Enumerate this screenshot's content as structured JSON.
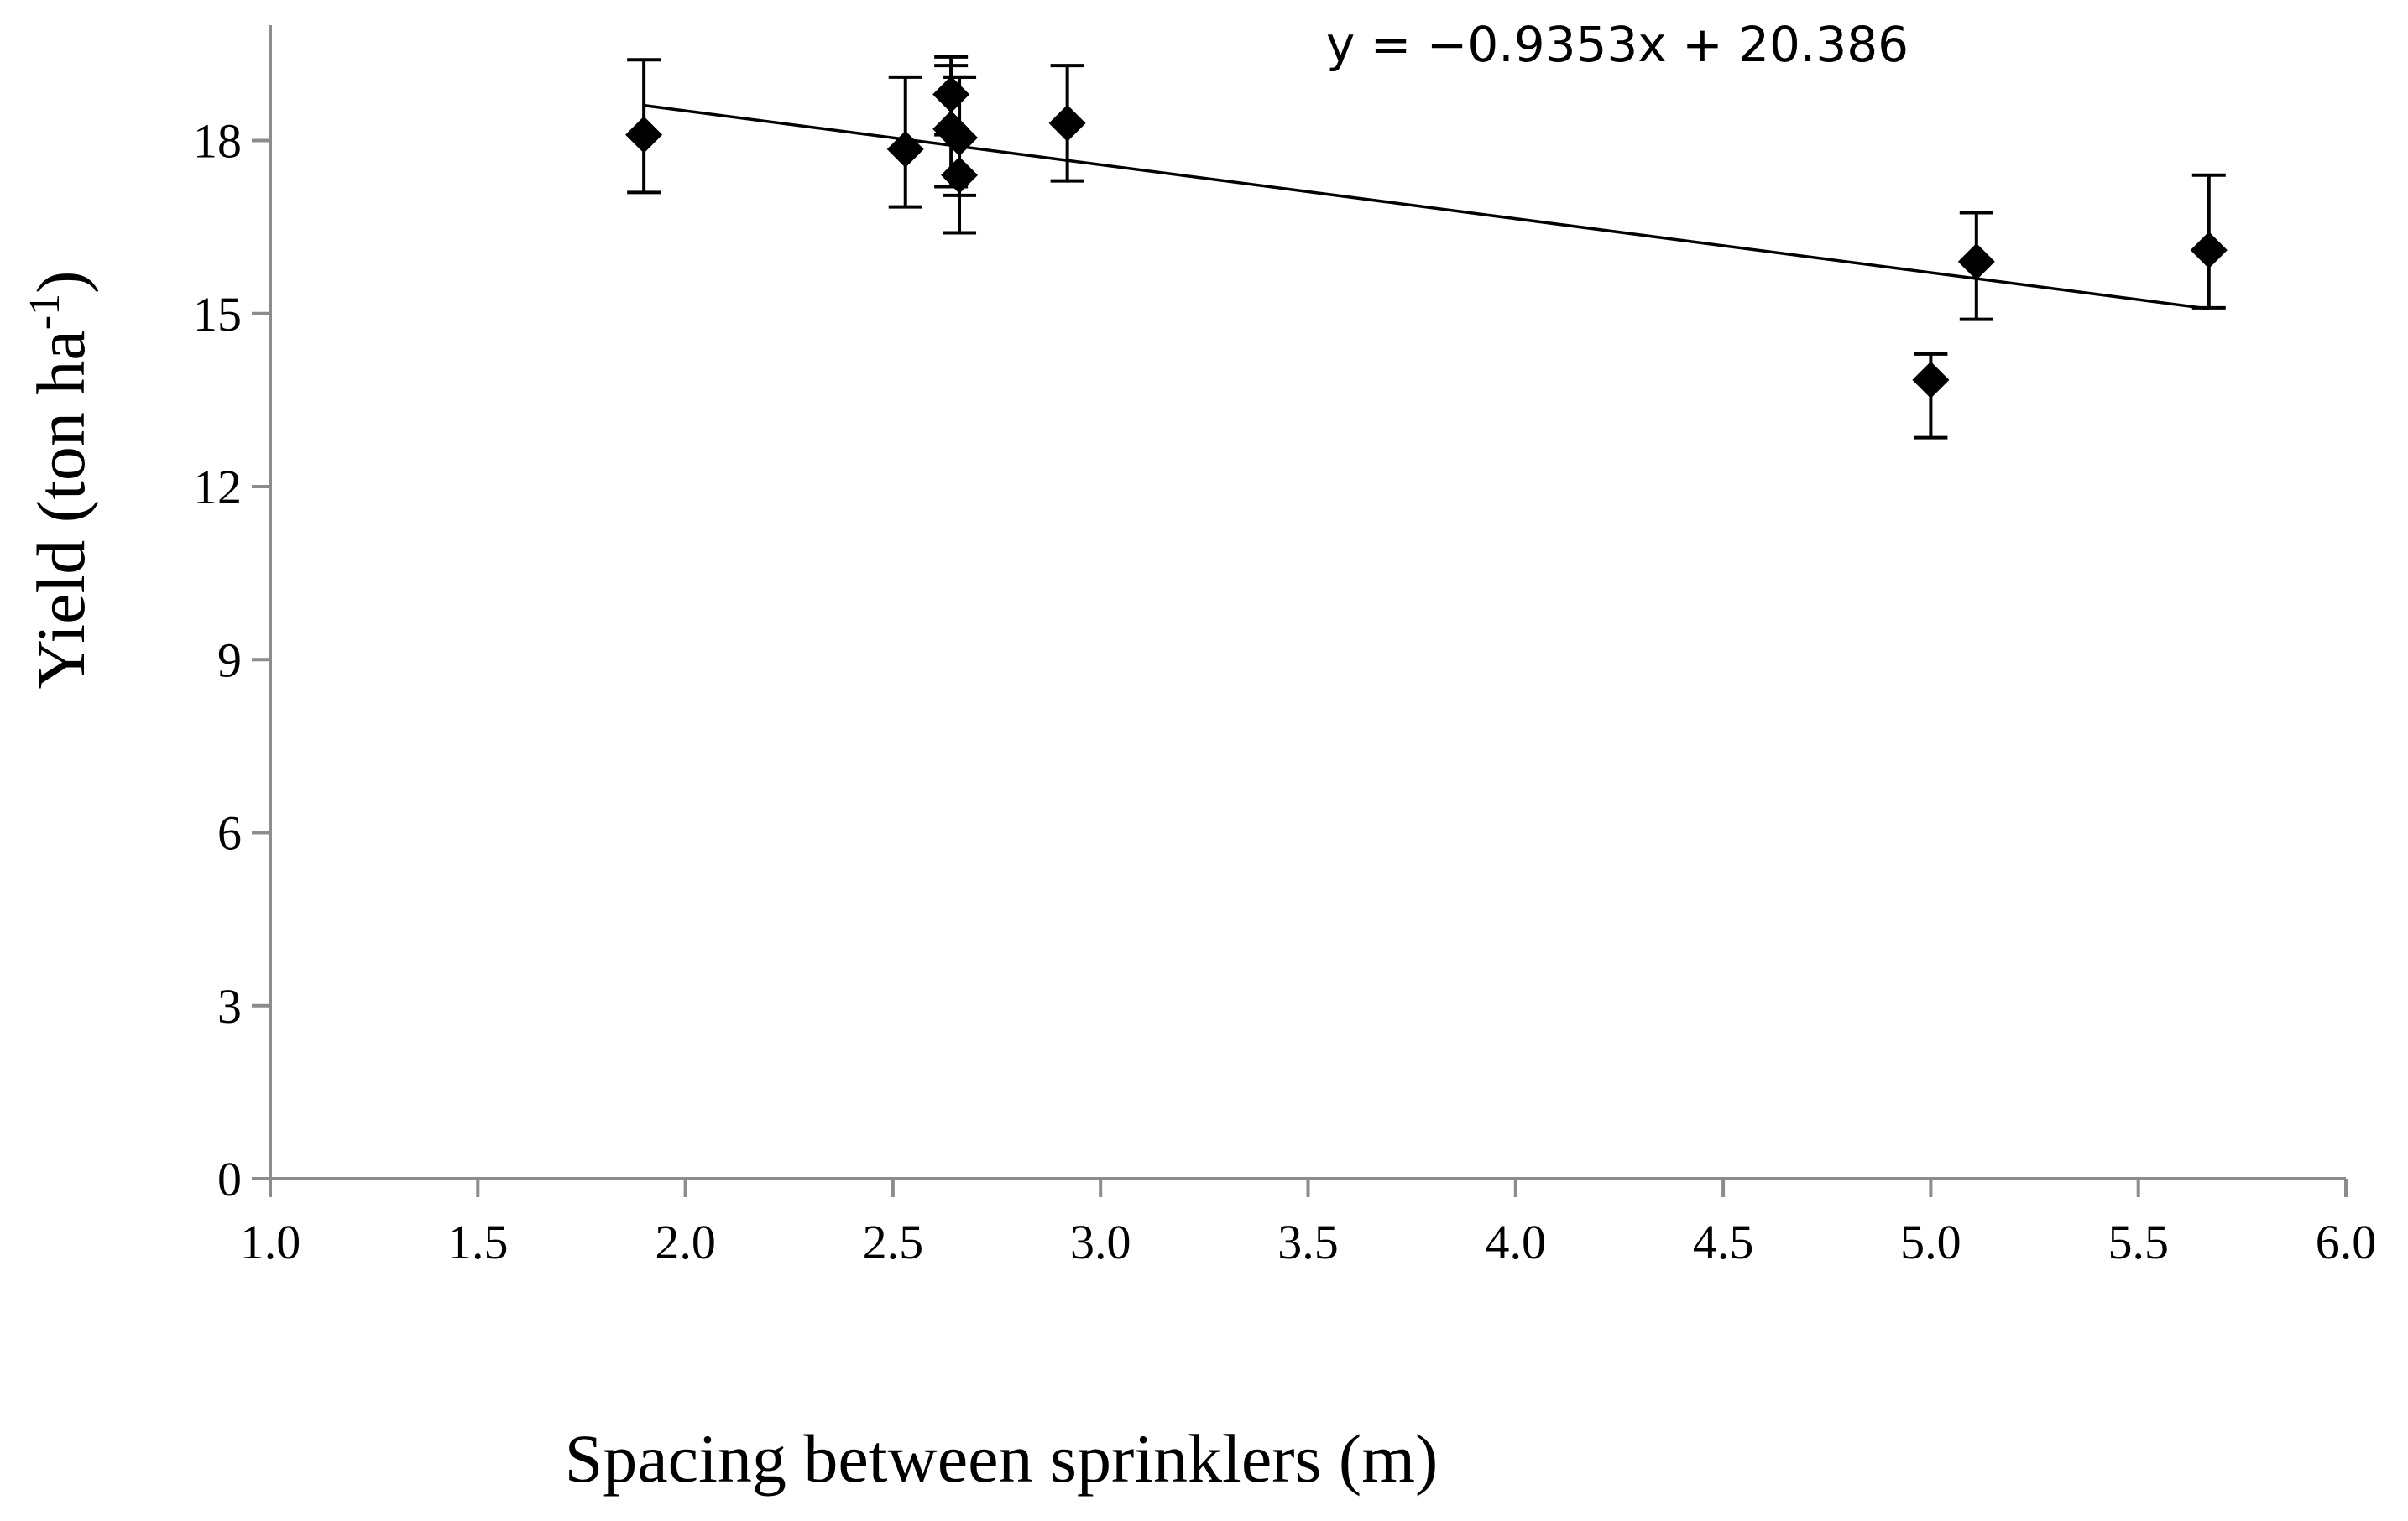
{
  "chart_data": {
    "type": "scatter",
    "xlabel": "Spacing between sprinklers (m)",
    "ylabel": "Yield (ton ha",
    "ylabel_sup": "-1",
    "ylabel_close": ")",
    "xlim": [
      1.0,
      6.0
    ],
    "ylim": [
      0,
      20
    ],
    "x_ticks": [
      1.0,
      1.5,
      2.0,
      2.5,
      3.0,
      3.5,
      4.0,
      4.5,
      5.0,
      5.5,
      6.0
    ],
    "x_tick_labels": [
      "1.0",
      "1.5",
      "2.0",
      "2.5",
      "3.0",
      "3.5",
      "4.0",
      "4.5",
      "5.0",
      "5.5",
      "6.0"
    ],
    "y_ticks": [
      0,
      3,
      6,
      9,
      12,
      15,
      18
    ],
    "y_tick_labels": [
      "0",
      "3",
      "6",
      "9",
      "12",
      "15",
      "18"
    ],
    "grid": false,
    "marker": "diamond",
    "color": "#000000",
    "points": [
      {
        "x": 1.9,
        "y": 18.1,
        "err_low": 1.0,
        "err_high": 1.3
      },
      {
        "x": 2.53,
        "y": 17.85,
        "err_low": 1.0,
        "err_high": 1.25
      },
      {
        "x": 2.64,
        "y": 18.8,
        "err_low": 0.7,
        "err_high": 0.65
      },
      {
        "x": 2.64,
        "y": 18.2,
        "err_low": 1.0,
        "err_high": 1.1
      },
      {
        "x": 2.66,
        "y": 18.05,
        "err_low": 1.0,
        "err_high": 1.05
      },
      {
        "x": 2.66,
        "y": 17.4,
        "err_low": 1.0,
        "err_high": 1.7
      },
      {
        "x": 2.92,
        "y": 18.3,
        "err_low": 1.0,
        "err_high": 1.0
      },
      {
        "x": 5.0,
        "y": 13.85,
        "err_low": 1.0,
        "err_high": 0.45
      },
      {
        "x": 5.11,
        "y": 15.9,
        "err_low": 1.0,
        "err_high": 0.85
      },
      {
        "x": 5.67,
        "y": 16.1,
        "err_low": 1.0,
        "err_high": 1.3
      }
    ],
    "trendline": {
      "slope": -0.9353,
      "intercept": 20.386,
      "x_start": 1.9,
      "x_end": 5.67,
      "label": "y = −0.9353x + 20.386"
    }
  }
}
